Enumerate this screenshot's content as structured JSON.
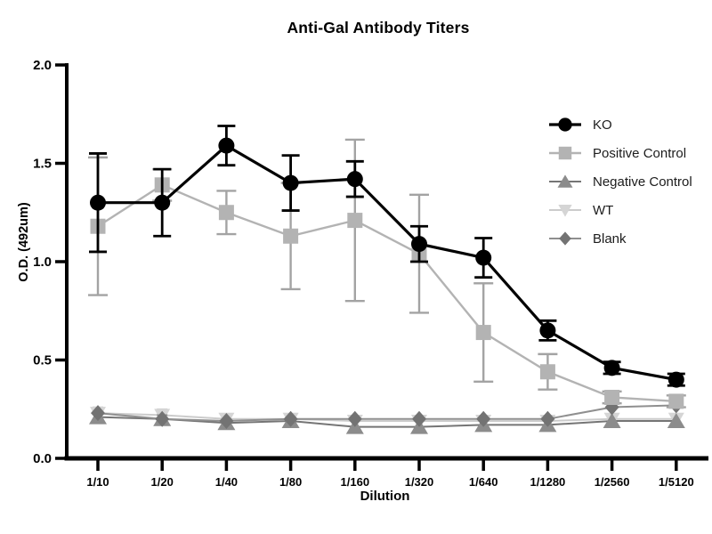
{
  "chart_data": {
    "type": "line",
    "title": "Anti-Gal Antibody Titers",
    "xlabel": "Dilution",
    "ylabel": "O.D. (492um)",
    "ylim": [
      0.0,
      2.0
    ],
    "yticks": [
      "0.0",
      "0.5",
      "1.0",
      "1.5",
      "2.0"
    ],
    "grid": false,
    "legend_position": "right-inside",
    "error_bars": true,
    "categories": [
      "1/10",
      "1/20",
      "1/40",
      "1/80",
      "1/160",
      "1/320",
      "1/640",
      "1/1280",
      "1/2560",
      "1/5120"
    ],
    "series": [
      {
        "id": "ko",
        "name": "KO",
        "marker": "circle",
        "color": "#000000",
        "line_color": "#000000",
        "err_color": "#000000",
        "line_width": 3.2,
        "err_width": 2.8,
        "err_cap": 10,
        "z": 4,
        "values": [
          1.3,
          1.3,
          1.59,
          1.4,
          1.42,
          1.09,
          1.02,
          0.65,
          0.46,
          0.4
        ],
        "errors": [
          0.25,
          0.17,
          0.1,
          0.14,
          0.09,
          0.09,
          0.1,
          0.05,
          0.03,
          0.03
        ]
      },
      {
        "id": "positive-control",
        "name": "Positive Control",
        "marker": "square",
        "color": "#b3b3b3",
        "line_color": "#b3b3b3",
        "err_color": "#a3a3a3",
        "line_width": 2.4,
        "err_width": 2.4,
        "err_cap": 11,
        "z": 3,
        "values": [
          1.18,
          1.39,
          1.25,
          1.13,
          1.21,
          1.04,
          0.64,
          0.44,
          0.31,
          0.29
        ],
        "errors": [
          0.35,
          0.08,
          0.11,
          0.27,
          0.41,
          0.3,
          0.25,
          0.09,
          0.03,
          0.03
        ]
      },
      {
        "id": "negative-control",
        "name": "Negative Control",
        "marker": "triangle-up",
        "color": "#8c8c8c",
        "line_color": "#757575",
        "err_color": "#8c8c8c",
        "line_width": 2,
        "err_width": 1.8,
        "err_cap": 6,
        "z": 1,
        "values": [
          0.21,
          0.2,
          0.18,
          0.19,
          0.16,
          0.16,
          0.17,
          0.17,
          0.19,
          0.19
        ],
        "errors": [
          0.02,
          0.02,
          0,
          0,
          0,
          0,
          0,
          0,
          0,
          0
        ]
      },
      {
        "id": "wt",
        "name": "WT",
        "marker": "triangle-down",
        "color": "#d5d5d5",
        "line_color": "#cccccc",
        "err_color": "#cfcfcf",
        "line_width": 2,
        "err_width": 1.8,
        "err_cap": 6,
        "z": 0,
        "values": [
          0.23,
          0.22,
          0.2,
          0.2,
          0.19,
          0.19,
          0.19,
          0.19,
          0.2,
          0.2
        ],
        "errors": [
          0.03,
          0.03,
          0,
          0,
          0,
          0,
          0,
          0,
          0,
          0
        ]
      },
      {
        "id": "blank",
        "name": "Blank",
        "marker": "diamond",
        "color": "#737373",
        "line_color": "#8f8f8f",
        "err_color": "#8f8f8f",
        "line_width": 2,
        "err_width": 0,
        "err_cap": 0,
        "z": 2,
        "values": [
          0.23,
          0.2,
          0.19,
          0.2,
          0.2,
          0.2,
          0.2,
          0.2,
          0.26,
          0.27
        ],
        "errors": [
          0,
          0,
          0,
          0,
          0,
          0,
          0,
          0,
          0,
          0
        ]
      }
    ]
  }
}
